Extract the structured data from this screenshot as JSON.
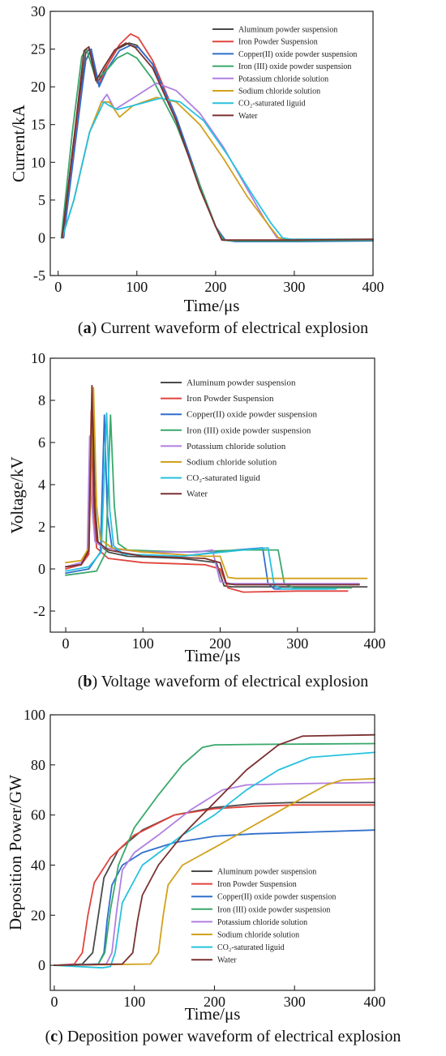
{
  "chart_data": [
    {
      "type": "line",
      "caption_letter": "a",
      "caption_rest": ") Current waveform of electrical explosion",
      "xlabel": "Time/μs",
      "ylabel": "Current/kA",
      "xlim": [
        -10,
        400
      ],
      "ylim": [
        -5,
        30
      ],
      "xticks": [
        0,
        100,
        200,
        300,
        400
      ],
      "yticks": [
        -5,
        0,
        5,
        10,
        15,
        20,
        25,
        30
      ],
      "grid": false,
      "legend_position": "top-right",
      "series": [
        {
          "name": "Aluminum powder suspension",
          "color": "#4a4a4a",
          "x": [
            5,
            20,
            35,
            40,
            50,
            60,
            75,
            90,
            100,
            120,
            150,
            180,
            200,
            210,
            220,
            300,
            400
          ],
          "y": [
            0,
            13,
            24.5,
            25,
            20.5,
            22.5,
            25,
            25.8,
            25.5,
            23,
            16,
            7,
            1.5,
            -0.3,
            -0.4,
            -0.4,
            -0.3
          ]
        },
        {
          "name": "Iron Powder Suspension",
          "color": "#e0443e",
          "x": [
            6,
            20,
            35,
            42,
            52,
            62,
            78,
            92,
            102,
            120,
            150,
            180,
            200,
            212,
            225,
            300,
            400
          ],
          "y": [
            0,
            12,
            23.5,
            24.8,
            20.3,
            22.8,
            25.6,
            27,
            26.5,
            23.5,
            16,
            7,
            1.5,
            -0.3,
            -0.4,
            -0.4,
            -0.3
          ]
        },
        {
          "name": "Copper(II) oxide powder suspension",
          "color": "#2f6fcc",
          "x": [
            7,
            20,
            35,
            42,
            52,
            62,
            78,
            92,
            102,
            120,
            150,
            180,
            200,
            212,
            225,
            300,
            400
          ],
          "y": [
            0,
            11,
            23.5,
            25,
            20,
            22.3,
            24.8,
            25.5,
            25.2,
            23,
            16,
            7,
            1.5,
            -0.3,
            -0.5,
            -0.5,
            -0.4
          ]
        },
        {
          "name": "Iron (III) oxide powder suspension",
          "color": "#3aa86b",
          "x": [
            4,
            18,
            30,
            36,
            48,
            60,
            75,
            88,
            100,
            120,
            150,
            180,
            200,
            210,
            222,
            300,
            400
          ],
          "y": [
            0,
            14,
            24,
            25,
            21,
            22,
            23.8,
            24.5,
            23.8,
            21,
            15,
            7,
            1.5,
            -0.3,
            -0.4,
            -0.4,
            -0.3
          ]
        },
        {
          "name": "Potassium chloride solution",
          "color": "#b07fe0",
          "x": [
            5,
            20,
            40,
            55,
            62,
            72,
            95,
            125,
            150,
            180,
            210,
            240,
            262,
            278,
            290,
            400
          ],
          "y": [
            0,
            5,
            14,
            18,
            19,
            17,
            18.5,
            20.5,
            19.5,
            16.5,
            12,
            6.5,
            2.5,
            0,
            -0.2,
            -0.2
          ]
        },
        {
          "name": "Sodium chloride solution",
          "color": "#d1a21c",
          "x": [
            5,
            20,
            40,
            55,
            65,
            78,
            95,
            125,
            150,
            180,
            210,
            240,
            265,
            280,
            290,
            400
          ],
          "y": [
            0,
            5,
            14,
            18,
            18,
            16,
            17.5,
            18.6,
            18,
            15,
            10.5,
            5.5,
            2,
            0,
            -0.2,
            -0.2
          ]
        },
        {
          "name": "CO₂-saturated liguid",
          "color": "#27c2de",
          "x": [
            5,
            20,
            40,
            58,
            65,
            75,
            95,
            130,
            155,
            185,
            215,
            245,
            270,
            285,
            295,
            400
          ],
          "y": [
            0,
            5,
            14,
            18,
            17.5,
            17,
            17.5,
            18.5,
            18,
            15.5,
            11,
            6,
            2,
            0,
            -0.2,
            -0.2
          ]
        },
        {
          "name": "Water",
          "color": "#7a3030",
          "x": [
            5,
            20,
            33,
            39,
            48,
            58,
            72,
            86,
            98,
            120,
            150,
            180,
            200,
            208,
            220,
            300,
            400
          ],
          "y": [
            0,
            13,
            24.8,
            25.3,
            20.8,
            22.6,
            24.9,
            25.8,
            25.2,
            22.5,
            15.5,
            6.5,
            1.5,
            -0.3,
            -0.3,
            -0.3,
            -0.2
          ]
        }
      ]
    },
    {
      "type": "line",
      "caption_letter": "b",
      "caption_rest": ") Voltage waveform of electrical explosion",
      "xlabel": "Time/μs",
      "ylabel": "Voltage/kV",
      "xlim": [
        -20,
        400
      ],
      "ylim": [
        -3,
        10
      ],
      "xticks": [
        0,
        100,
        200,
        300,
        400
      ],
      "yticks": [
        -2,
        0,
        2,
        4,
        6,
        8,
        10
      ],
      "grid": false,
      "legend_position": "top-right",
      "series": [
        {
          "name": "Aluminum powder suspension",
          "color": "#4a4a4a",
          "x": [
            0,
            20,
            30,
            35,
            38,
            42,
            55,
            80,
            150,
            195,
            205,
            215,
            300,
            390
          ],
          "y": [
            0.1,
            0.2,
            0.8,
            8.2,
            3,
            1.2,
            0.8,
            0.6,
            0.5,
            0.3,
            -0.8,
            -0.85,
            -0.85,
            -0.85
          ]
        },
        {
          "name": "Iron Powder Suspension",
          "color": "#e0443e",
          "x": [
            0,
            20,
            30,
            33,
            36,
            40,
            55,
            100,
            180,
            200,
            210,
            230,
            300,
            365
          ],
          "y": [
            0,
            0.2,
            0.7,
            7.5,
            3,
            1,
            0.5,
            0.3,
            0.2,
            0,
            -0.9,
            -1.1,
            -1.05,
            -1.05
          ]
        },
        {
          "name": "Copper(II) oxide powder suspension",
          "color": "#2f6fcc",
          "x": [
            0,
            30,
            45,
            50,
            54,
            60,
            75,
            150,
            220,
            255,
            262,
            270,
            340
          ],
          "y": [
            -0.2,
            0,
            0.8,
            7.3,
            2.5,
            1,
            0.7,
            0.6,
            0.9,
            1,
            -0.7,
            -0.95,
            -0.95
          ]
        },
        {
          "name": "Iron (III) oxide powder suspension",
          "color": "#3aa86b",
          "x": [
            0,
            40,
            52,
            58,
            63,
            68,
            80,
            150,
            230,
            275,
            283,
            295,
            370
          ],
          "y": [
            -0.3,
            -0.1,
            0.8,
            7.3,
            3,
            1.2,
            0.9,
            0.8,
            0.9,
            0.9,
            -0.7,
            -0.9,
            -0.9
          ]
        },
        {
          "name": "Potassium chloride solution",
          "color": "#b07fe0",
          "x": [
            0,
            20,
            28,
            31,
            34,
            38,
            50,
            100,
            170,
            190,
            200,
            215,
            300,
            380
          ],
          "y": [
            0.1,
            0.3,
            0.8,
            6.3,
            3,
            1.3,
            1,
            0.8,
            0.8,
            0.9,
            -0.6,
            -0.7,
            -0.7,
            -0.7
          ]
        },
        {
          "name": "Sodium chloride solution",
          "color": "#d1a21c",
          "x": [
            0,
            20,
            30,
            36,
            40,
            45,
            60,
            100,
            180,
            200,
            210,
            220,
            300,
            390
          ],
          "y": [
            0.3,
            0.4,
            1,
            8.6,
            3,
            1.4,
            1,
            0.8,
            0.6,
            0.6,
            -0.4,
            -0.45,
            -0.45,
            -0.45
          ]
        },
        {
          "name": "CO₂-saturated liguid",
          "color": "#27c2de",
          "x": [
            0,
            30,
            46,
            53,
            57,
            62,
            75,
            150,
            230,
            262,
            270,
            280,
            350
          ],
          "y": [
            -0.1,
            0.1,
            0.8,
            7.4,
            2.8,
            1.1,
            0.7,
            0.6,
            0.9,
            1,
            -0.8,
            -0.95,
            -0.95
          ]
        },
        {
          "name": "Water",
          "color": "#7a3030",
          "x": [
            0,
            20,
            30,
            34,
            37,
            41,
            55,
            100,
            180,
            200,
            208,
            220,
            300,
            380
          ],
          "y": [
            0.1,
            0.2,
            0.9,
            8.7,
            3,
            1.3,
            0.9,
            0.6,
            0.5,
            0.3,
            -0.7,
            -0.75,
            -0.75,
            -0.75
          ]
        }
      ]
    },
    {
      "type": "line",
      "caption_letter": "c",
      "caption_rest": ") Deposition power waveform of electrical explosion",
      "xlabel": "Time/μs",
      "ylabel": "Deposition Power/GW",
      "xlim": [
        -5,
        400
      ],
      "ylim": [
        -10,
        100
      ],
      "xticks": [
        0,
        100,
        200,
        300,
        400
      ],
      "yticks": [
        0,
        20,
        40,
        60,
        80,
        100
      ],
      "grid": false,
      "legend_position": "bottom-right",
      "series": [
        {
          "name": "Aluminum powder suspension",
          "color": "#4a4a4a",
          "x": [
            0,
            35,
            48,
            55,
            62,
            80,
            110,
            150,
            200,
            250,
            300,
            400
          ],
          "y": [
            0,
            0.5,
            5,
            20,
            35,
            46,
            54,
            60,
            63,
            64.5,
            65,
            65
          ]
        },
        {
          "name": "Iron Powder Suspension",
          "color": "#e0443e",
          "x": [
            0,
            25,
            35,
            42,
            50,
            70,
            100,
            150,
            200,
            250,
            300,
            400
          ],
          "y": [
            0,
            0.5,
            5,
            20,
            33,
            43,
            52,
            60,
            62.5,
            63.5,
            64,
            64
          ]
        },
        {
          "name": "Copper(II) oxide powder suspension",
          "color": "#2f6fcc",
          "x": [
            0,
            55,
            62,
            66,
            72,
            85,
            110,
            150,
            200,
            250,
            300,
            400
          ],
          "y": [
            0,
            0.5,
            5,
            18,
            32,
            40,
            45,
            49,
            51.5,
            52.5,
            53,
            54
          ]
        },
        {
          "name": "Iron (III) oxide powder suspension",
          "color": "#3aa86b",
          "x": [
            0,
            55,
            63,
            70,
            80,
            100,
            130,
            160,
            185,
            200,
            250,
            400
          ],
          "y": [
            0,
            0.5,
            5,
            22,
            40,
            55,
            68,
            80,
            87,
            88,
            88.2,
            88.5
          ]
        },
        {
          "name": "Potassium chloride solution",
          "color": "#b07fe0",
          "x": [
            0,
            65,
            72,
            78,
            85,
            100,
            130,
            170,
            210,
            240,
            300,
            400
          ],
          "y": [
            0,
            0.5,
            5,
            22,
            38,
            45,
            52,
            62,
            70,
            72,
            72.5,
            73
          ]
        },
        {
          "name": "Sodium chloride solution",
          "color": "#d1a21c",
          "x": [
            0,
            120,
            130,
            136,
            142,
            160,
            200,
            250,
            300,
            340,
            360,
            400
          ],
          "y": [
            0,
            0.5,
            5,
            20,
            32,
            40,
            47,
            56,
            65,
            72,
            74,
            74.5
          ]
        },
        {
          "name": "CO₂-saturated liguid",
          "color": "#27c2de",
          "x": [
            0,
            60,
            70,
            76,
            85,
            110,
            160,
            200,
            240,
            280,
            320,
            400
          ],
          "y": [
            0,
            -1,
            -0.5,
            5,
            25,
            40,
            52,
            60,
            70,
            78,
            83,
            85
          ]
        },
        {
          "name": "Water",
          "color": "#7a3030",
          "x": [
            0,
            85,
            98,
            104,
            110,
            130,
            160,
            200,
            240,
            280,
            310,
            400
          ],
          "y": [
            0,
            0.5,
            5,
            18,
            28,
            40,
            52,
            65,
            78,
            88,
            91.5,
            92
          ]
        }
      ]
    }
  ]
}
